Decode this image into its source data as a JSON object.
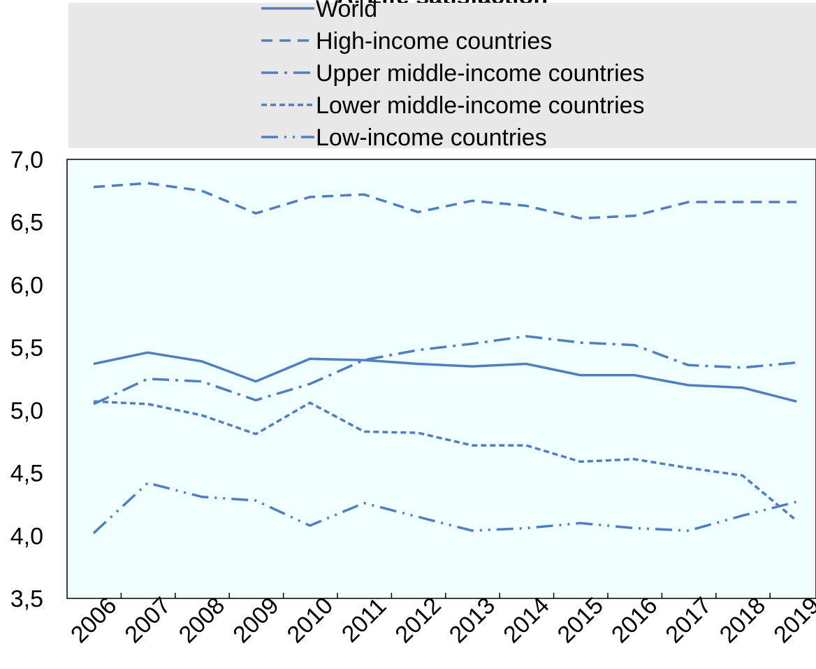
{
  "chart_data": {
    "type": "line",
    "title": "A. Life satisfaction",
    "x": [
      "2006",
      "2007",
      "2008",
      "2009",
      "2010",
      "2011",
      "2012",
      "2013",
      "2014",
      "2015",
      "2016",
      "2017",
      "2018",
      "2019"
    ],
    "ylim": [
      3.5,
      7.0
    ],
    "yticks": [
      "3,5",
      "4,0",
      "4,5",
      "5,0",
      "5,5",
      "6,0",
      "6,5",
      "7,0"
    ],
    "grid": false,
    "legend_position": "top",
    "plot_background": "#f0ffff",
    "legend_background": "#e8e8e8",
    "series": [
      {
        "name": "World",
        "style": "solid",
        "color": "#4f7fbf",
        "values": [
          5.37,
          5.46,
          5.39,
          5.23,
          5.41,
          5.4,
          5.37,
          5.35,
          5.37,
          5.28,
          5.28,
          5.2,
          5.18,
          5.07
        ]
      },
      {
        "name": "High-income countries",
        "style": "dash",
        "color": "#4f7fbf",
        "values": [
          6.78,
          6.81,
          6.75,
          6.57,
          6.7,
          6.72,
          6.58,
          6.67,
          6.63,
          6.53,
          6.55,
          6.66,
          6.66,
          6.66
        ]
      },
      {
        "name": "Upper middle-income countries",
        "style": "dashdot",
        "color": "#4f7fbf",
        "values": [
          5.05,
          5.25,
          5.23,
          5.08,
          5.21,
          5.4,
          5.48,
          5.53,
          5.59,
          5.54,
          5.52,
          5.36,
          5.34,
          5.38
        ]
      },
      {
        "name": "Lower middle-income countries",
        "style": "shortdash",
        "color": "#4f7fbf",
        "values": [
          5.07,
          5.05,
          4.96,
          4.81,
          5.06,
          4.83,
          4.82,
          4.72,
          4.72,
          4.59,
          4.61,
          4.54,
          4.48,
          4.12
        ]
      },
      {
        "name": "Low-income countries",
        "style": "dashdotdot",
        "color": "#4f7fbf",
        "values": [
          4.02,
          4.42,
          4.31,
          4.28,
          4.08,
          4.26,
          4.15,
          4.04,
          4.06,
          4.1,
          4.06,
          4.04,
          4.16,
          4.27
        ]
      }
    ]
  }
}
